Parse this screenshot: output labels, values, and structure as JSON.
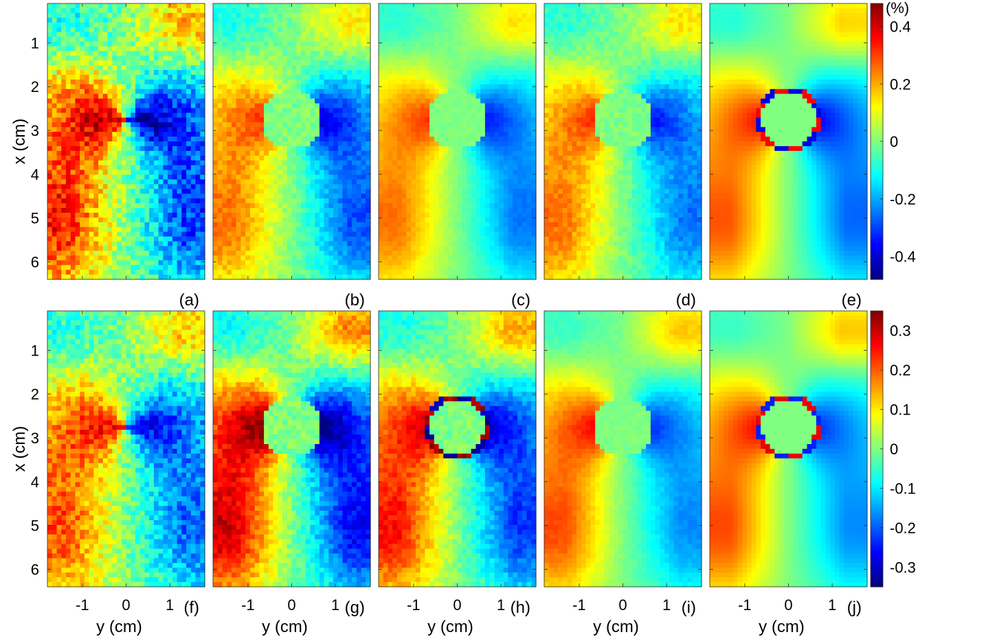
{
  "chart_data": {
    "type": "heatmap",
    "colormap": "jet",
    "rows": [
      {
        "row": "top",
        "panels": [
          "(a)",
          "(b)",
          "(c)",
          "(d)",
          "(e)"
        ],
        "color_limits": [
          -0.48,
          0.48
        ],
        "colorbar_unit": "(%)",
        "colorbar_ticks": [
          {
            "value": 0.4,
            "label": "0.4"
          },
          {
            "value": 0.2,
            "label": "0.2"
          },
          {
            "value": 0,
            "label": "0"
          },
          {
            "value": -0.2,
            "label": "-0.2"
          },
          {
            "value": -0.4,
            "label": "-0.4"
          }
        ]
      },
      {
        "row": "bottom",
        "panels": [
          "(f)",
          "(g)",
          "(h)",
          "(i)",
          "(j)"
        ],
        "color_limits": [
          -0.35,
          0.35
        ],
        "colorbar_unit": "",
        "colorbar_ticks": [
          {
            "value": 0.3,
            "label": "0.3"
          },
          {
            "value": 0.2,
            "label": "0.2"
          },
          {
            "value": 0.1,
            "label": "0.1"
          },
          {
            "value": 0,
            "label": "0"
          },
          {
            "value": -0.1,
            "label": "-0.1"
          },
          {
            "value": -0.2,
            "label": "-0.2"
          },
          {
            "value": -0.3,
            "label": "-0.3"
          }
        ]
      }
    ],
    "x_axis": {
      "label": "x (cm)",
      "range": [
        0.1,
        6.4
      ],
      "ticks": [
        {
          "value": 1,
          "label": "1"
        },
        {
          "value": 2,
          "label": "2"
        },
        {
          "value": 3,
          "label": "3"
        },
        {
          "value": 4,
          "label": "4"
        },
        {
          "value": 5,
          "label": "5"
        },
        {
          "value": 6,
          "label": "6"
        }
      ]
    },
    "y_axis": {
      "label": "y (cm)",
      "range": [
        -1.8,
        1.8
      ],
      "ticks": [
        {
          "value": -1,
          "label": "-1"
        },
        {
          "value": 0,
          "label": "0"
        },
        {
          "value": 1,
          "label": "1"
        }
      ]
    },
    "panel_values": {
      "(a)": {
        "west_lobe_peak": 0.4,
        "east_lobe_peak": -0.4,
        "noise": "high",
        "inclusion": false
      },
      "(b)": {
        "west_lobe_peak": 0.3,
        "east_lobe_peak": -0.38,
        "noise": "medium",
        "inclusion": true,
        "inclusion_value": 0
      },
      "(c)": {
        "west_lobe_peak": 0.3,
        "east_lobe_peak": -0.33,
        "noise": "low",
        "inclusion": true,
        "inclusion_value": 0
      },
      "(d)": {
        "west_lobe_peak": 0.3,
        "east_lobe_peak": -0.33,
        "noise": "medium",
        "inclusion": true,
        "inclusion_value": 0
      },
      "(e)": {
        "west_lobe_peak": 0.33,
        "east_lobe_peak": -0.35,
        "noise": "none",
        "inclusion": true,
        "inclusion_value": 0,
        "boundary_ring": true
      },
      "(f)": {
        "west_lobe_peak": 0.25,
        "east_lobe_peak": -0.25,
        "noise": "high",
        "inclusion": false
      },
      "(g)": {
        "west_lobe_peak": 0.35,
        "east_lobe_peak": -0.35,
        "noise": "medium",
        "inclusion": true,
        "inclusion_value": 0
      },
      "(h)": {
        "west_lobe_peak": 0.3,
        "east_lobe_peak": -0.3,
        "noise": "medium",
        "inclusion": true,
        "inclusion_value": 0,
        "boundary_ring": true
      },
      "(i)": {
        "west_lobe_peak": 0.25,
        "east_lobe_peak": -0.22,
        "noise": "low",
        "inclusion": true,
        "inclusion_value": 0
      },
      "(j)": {
        "west_lobe_peak": 0.25,
        "east_lobe_peak": -0.22,
        "noise": "none",
        "inclusion": true,
        "inclusion_value": 0,
        "boundary_ring": true
      }
    }
  }
}
